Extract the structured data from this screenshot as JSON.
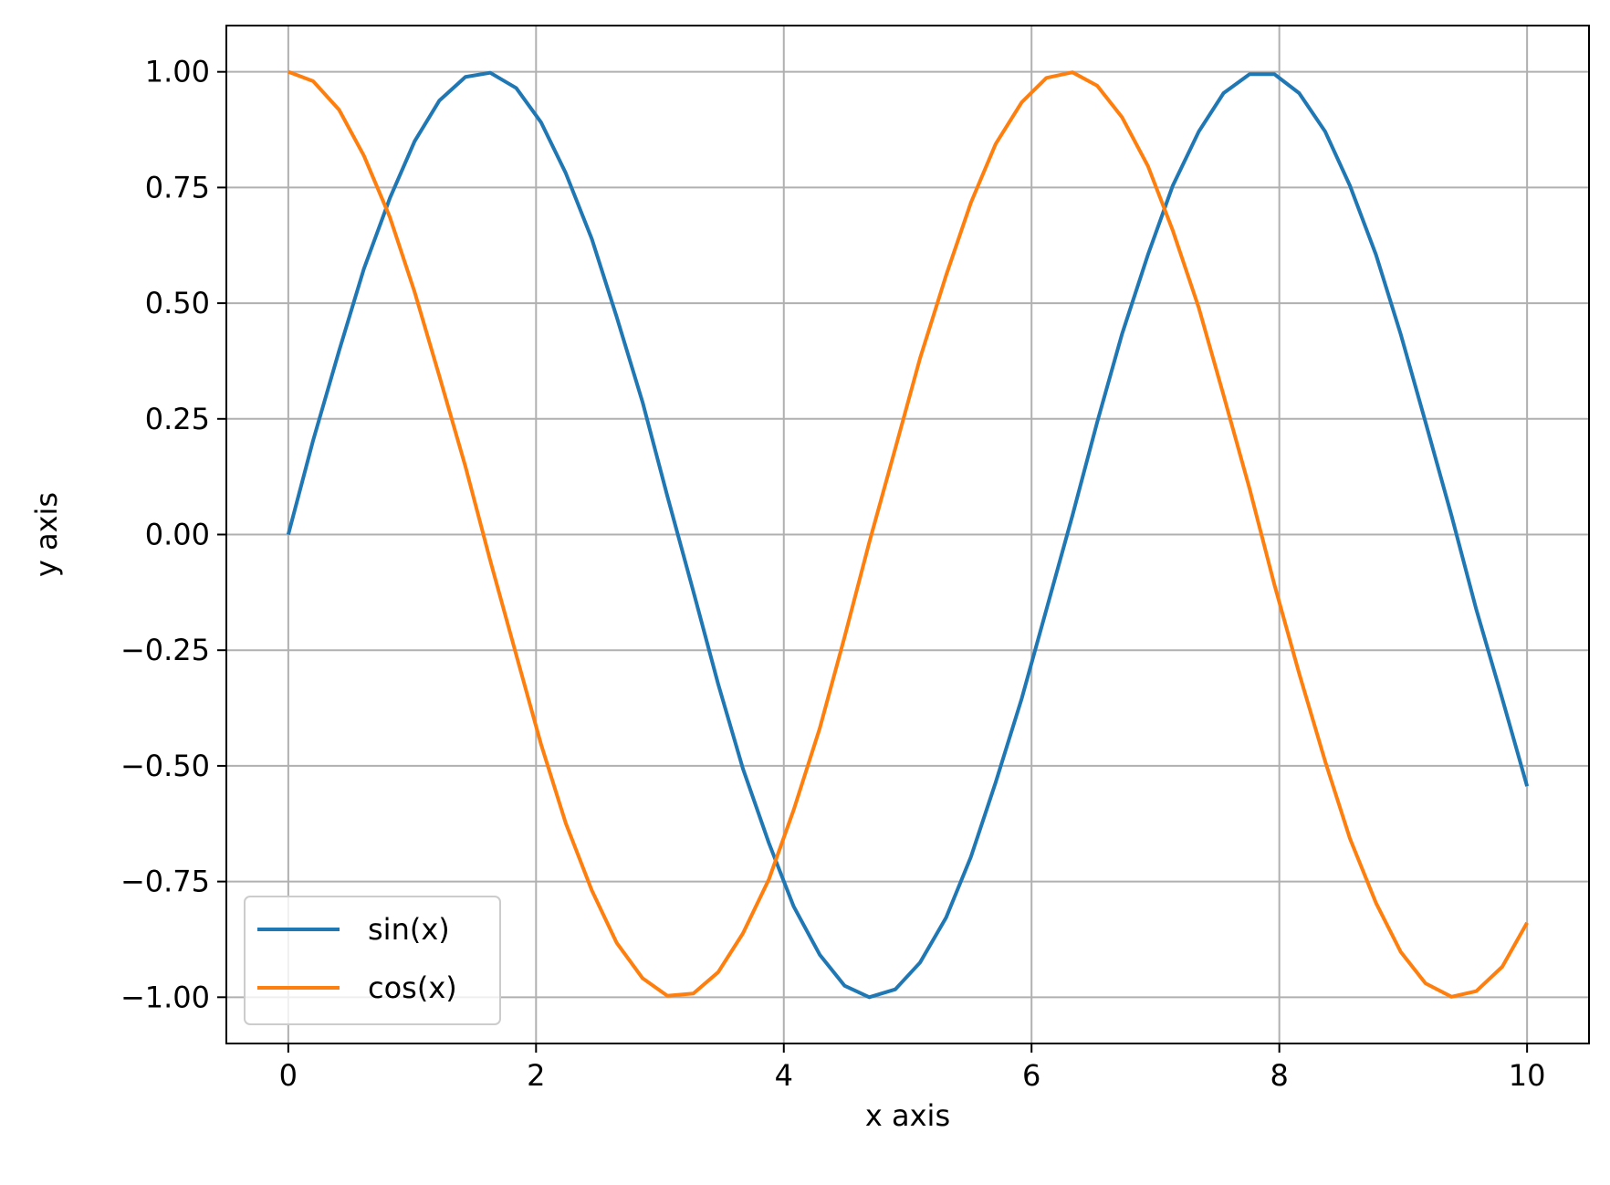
{
  "chart_data": {
    "type": "line",
    "title": "",
    "xlabel": "x axis",
    "ylabel": "y axis",
    "xlim": [
      -0.5,
      10.5
    ],
    "ylim": [
      -1.1,
      1.1
    ],
    "xticks": [
      0,
      2,
      4,
      6,
      8,
      10
    ],
    "xtick_labels": [
      "0",
      "2",
      "4",
      "6",
      "8",
      "10"
    ],
    "yticks": [
      1.0,
      0.75,
      0.5,
      0.25,
      0.0,
      -0.25,
      -0.5,
      -0.75,
      -1.0
    ],
    "ytick_labels": [
      "1.00",
      "0.75",
      "0.50",
      "0.25",
      "0.00",
      "−0.25",
      "−0.50",
      "−0.75",
      "−1.00"
    ],
    "grid": true,
    "legend": {
      "placement": "lower-left",
      "entries": [
        "sin(x)",
        "cos(x)"
      ]
    },
    "x": [
      0.0,
      0.2,
      0.41,
      0.61,
      0.82,
      1.02,
      1.22,
      1.43,
      1.63,
      1.84,
      2.04,
      2.24,
      2.45,
      2.65,
      2.86,
      3.06,
      3.27,
      3.47,
      3.67,
      3.88,
      4.08,
      4.29,
      4.49,
      4.69,
      4.9,
      5.1,
      5.31,
      5.51,
      5.71,
      5.92,
      6.12,
      6.33,
      6.53,
      6.73,
      6.94,
      7.14,
      7.35,
      7.55,
      7.76,
      7.96,
      8.16,
      8.37,
      8.57,
      8.78,
      8.98,
      9.18,
      9.39,
      9.59,
      9.8,
      10.0
    ],
    "series": [
      {
        "name": "sin(x)",
        "color": "#1f77b4",
        "values": [
          0.0,
          0.203,
          0.397,
          0.574,
          0.727,
          0.85,
          0.938,
          0.989,
          0.998,
          0.965,
          0.891,
          0.781,
          0.639,
          0.471,
          0.286,
          0.083,
          -0.123,
          -0.323,
          -0.506,
          -0.667,
          -0.804,
          -0.908,
          -0.975,
          -1.0,
          -0.983,
          -0.925,
          -0.828,
          -0.697,
          -0.536,
          -0.355,
          -0.162,
          0.041,
          0.243,
          0.433,
          0.605,
          0.754,
          0.871,
          0.954,
          0.995,
          0.995,
          0.954,
          0.871,
          0.754,
          0.605,
          0.433,
          0.243,
          0.041,
          -0.162,
          -0.355,
          -0.544
        ]
      },
      {
        "name": "cos(x)",
        "color": "#ff7f0e",
        "values": [
          1.0,
          0.98,
          0.918,
          0.819,
          0.686,
          0.524,
          0.342,
          0.147,
          -0.056,
          -0.26,
          -0.453,
          -0.624,
          -0.769,
          -0.882,
          -0.959,
          -0.997,
          -0.992,
          -0.946,
          -0.862,
          -0.745,
          -0.595,
          -0.419,
          -0.222,
          -0.017,
          0.186,
          0.381,
          0.56,
          0.717,
          0.844,
          0.934,
          0.987,
          0.999,
          0.97,
          0.902,
          0.796,
          0.657,
          0.49,
          0.301,
          0.099,
          -0.108,
          -0.3,
          -0.49,
          -0.657,
          -0.796,
          -0.902,
          -0.97,
          -0.999,
          -0.987,
          -0.934,
          -0.839
        ]
      }
    ]
  }
}
